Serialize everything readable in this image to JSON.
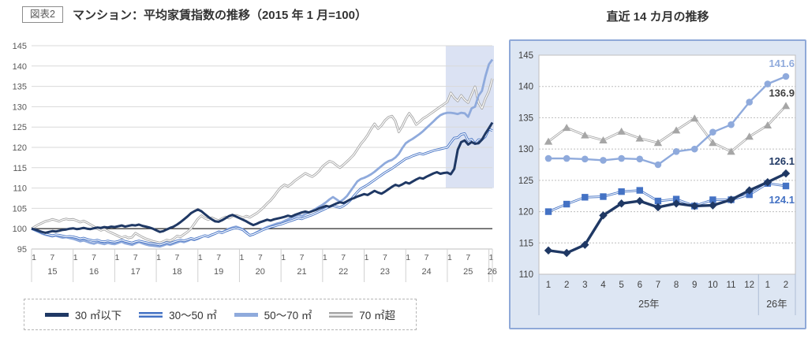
{
  "header": {
    "figure_label": "図表2",
    "title": "マンション：平均家賃指数の推移（2015 年 1 月=100）",
    "right_title": "直近 14 カ月の推移"
  },
  "colors": {
    "navy": "#1f3864",
    "blue": "#4472c4",
    "light_blue": "#8faadc",
    "gray": "#a6a6a6",
    "grid": "#d9d9d9",
    "baseline": "#3f3f3f",
    "axis_text": "#595959",
    "label_dark": "#3f3f3f",
    "highlight_band": "#dbe2f3",
    "panel_bg": "#dde6f3",
    "panel_border": "#8fa9d8"
  },
  "legend": {
    "items": [
      {
        "label": "30 ㎡以下",
        "style": "solid-navy",
        "color": "#1f3864"
      },
      {
        "label": "30～50 ㎡",
        "style": "double-blue",
        "color": "#4472c4"
      },
      {
        "label": "50～70 ㎡",
        "style": "solid-light",
        "color": "#8faadc"
      },
      {
        "label": "70 ㎡超",
        "style": "double-gray",
        "color": "#a6a6a6"
      }
    ]
  },
  "chart_data": [
    {
      "type": "line",
      "title": "マンション：平均家賃指数の推移（2015 年 1 月=100）",
      "x_months": {
        "start": "2015-01",
        "end": "2026-02",
        "interval": "monthly",
        "count": 134
      },
      "ylim": [
        95,
        145
      ],
      "yticks": [
        95,
        100,
        105,
        110,
        115,
        120,
        125,
        130,
        135,
        140,
        145
      ],
      "baseline_value": 100,
      "xtick_month_labels": [
        "1",
        "7"
      ],
      "year_labels": [
        "15",
        "16",
        "17",
        "18",
        "19",
        "20",
        "21",
        "22",
        "23",
        "24",
        "25",
        "26"
      ],
      "highlight": {
        "start_month": "2025-01",
        "start_index": 120,
        "bottom_value": 110
      },
      "grid": true,
      "series": [
        {
          "key": "over70",
          "name": "70 ㎡超",
          "color": "#a6a6a6",
          "style": "double",
          "values": [
            100,
            100.5,
            101,
            101.4,
            101.8,
            102,
            102.3,
            102.1,
            101.8,
            102.2,
            102.4,
            102.2,
            102.3,
            102,
            101.6,
            101.9,
            101.5,
            101,
            100.5,
            100,
            99.6,
            99.9,
            99.4,
            99,
            98.6,
            98.2,
            97.8,
            98.1,
            97.7,
            97.9,
            98.9,
            98.4,
            97.9,
            97.5,
            97.2,
            96.9,
            96.7,
            96.5,
            96.8,
            97.2,
            97,
            97.5,
            98.2,
            98,
            98.6,
            99.2,
            100,
            101.2,
            102.4,
            103.2,
            102.6,
            102.2,
            102.7,
            102.3,
            102,
            102.5,
            102.9,
            102.6,
            103.1,
            103.3,
            103,
            102.7,
            103.1,
            102.8,
            103.3,
            103.8,
            104.5,
            105.3,
            106.2,
            107,
            108,
            109.2,
            110.2,
            110.8,
            110.4,
            111,
            111.8,
            112.4,
            113,
            113.6,
            113.2,
            112.8,
            113.4,
            114.2,
            115.3,
            116,
            116.6,
            116.3,
            115.6,
            115,
            115.7,
            116.5,
            117.3,
            118.2,
            119.5,
            120.8,
            121.8,
            123,
            124.5,
            125.8,
            124.6,
            125.4,
            126.6,
            127.4,
            127.7,
            126.5,
            123.8,
            125.2,
            127,
            128.4,
            127.2,
            125.6,
            126.3,
            127.1,
            127.6,
            128.2,
            128.8,
            129.4,
            130,
            130.6,
            131.2,
            133.4,
            132.2,
            131.4,
            132.8,
            131.7,
            131,
            133,
            134.9,
            131,
            129.6,
            132,
            133.8,
            136.9
          ]
        },
        {
          "key": "s50to70",
          "name": "50～70 ㎡",
          "color": "#8faadc",
          "style": "solid",
          "values": [
            100,
            99.6,
            99.2,
            98.8,
            98.5,
            98.3,
            98.1,
            98.3,
            98,
            97.8,
            97.9,
            97.7,
            97.5,
            97.2,
            96.9,
            97.1,
            96.8,
            96.5,
            96.3,
            96.6,
            96.4,
            96.2,
            96.5,
            96.3,
            96.2,
            96.5,
            96.8,
            96.4,
            96.2,
            96,
            96.4,
            96.7,
            96.4,
            96.1,
            95.9,
            95.8,
            95.7,
            95.6,
            95.9,
            96.2,
            96,
            96.3,
            96.6,
            96.9,
            96.7,
            97,
            97.4,
            97.2,
            97.5,
            97.9,
            98.3,
            98,
            98.4,
            98.8,
            99.3,
            99.1,
            99.6,
            100,
            100.3,
            100.5,
            100.2,
            99.8,
            99.2,
            98.3,
            98.6,
            99.1,
            99.6,
            100,
            100.4,
            100.7,
            101,
            101.3,
            101.5,
            101.9,
            102.3,
            102.7,
            103,
            103.4,
            103.1,
            103.6,
            104,
            104.4,
            104.9,
            105.4,
            105.9,
            106.5,
            107.2,
            107.8,
            107.2,
            106.6,
            107.2,
            108,
            109.2,
            110.4,
            111.6,
            112.2,
            112.5,
            112.9,
            113.4,
            114,
            114.7,
            115.4,
            116.1,
            116.6,
            116.9,
            117.5,
            118.4,
            119.8,
            121,
            121.6,
            122.1,
            122.7,
            123.3,
            124,
            124.8,
            125.6,
            126.4,
            127.2,
            127.9,
            128.3,
            128.5,
            128.5,
            128.4,
            128.2,
            128.5,
            128.4,
            127.5,
            129.6,
            130,
            132.7,
            133.9,
            137.5,
            140.4,
            141.6
          ]
        },
        {
          "key": "s30to50",
          "name": "30～50 ㎡",
          "color": "#4472c4",
          "style": "double",
          "values": [
            100,
            99.7,
            99.4,
            99,
            98.7,
            98.5,
            98.3,
            98.5,
            98.4,
            98.2,
            98,
            98.1,
            98,
            97.8,
            97.5,
            97.7,
            97.4,
            97.2,
            97,
            97.2,
            96.9,
            96.8,
            97,
            96.8,
            96.7,
            96.9,
            97.2,
            96.9,
            96.7,
            96.5,
            96.8,
            97,
            96.8,
            96.6,
            96.4,
            96.3,
            96.2,
            96,
            96.3,
            96.6,
            96.4,
            96.7,
            97,
            97.2,
            97,
            97.3,
            97.6,
            97.4,
            97.7,
            98,
            98.3,
            98.1,
            98.5,
            98.8,
            99.2,
            99,
            99.4,
            99.7,
            100,
            100.2,
            100,
            99.7,
            99,
            98.4,
            98.6,
            99,
            99.4,
            99.8,
            100.1,
            100.4,
            100.6,
            100.9,
            101.1,
            101.4,
            101.7,
            102,
            102.3,
            102.6,
            102.4,
            102.8,
            103.1,
            103.4,
            103.8,
            104.2,
            104.6,
            105,
            105.4,
            105.7,
            105.4,
            105.2,
            105.6,
            106.2,
            107,
            108,
            109,
            109.8,
            110.3,
            110.8,
            111.4,
            112,
            112.6,
            113.2,
            113.8,
            114.3,
            114.8,
            115.4,
            116,
            116.6,
            117.2,
            117.5,
            117.9,
            118.2,
            118.5,
            118.3,
            118.6,
            118.9,
            119.2,
            119.4,
            119.6,
            119.8,
            120,
            121.2,
            122.3,
            122.4,
            123.2,
            123.4,
            121.7,
            122,
            120.9,
            121.9,
            121.9,
            122.7,
            124.5,
            124.1
          ]
        },
        {
          "key": "under30",
          "name": "30 ㎡以下",
          "color": "#1f3864",
          "style": "solid",
          "values": [
            100,
            99.8,
            99.5,
            99.2,
            99,
            99.2,
            99.4,
            99.3,
            99.5,
            99.7,
            99.8,
            100,
            100.1,
            99.9,
            100,
            100.2,
            100,
            99.9,
            100.1,
            100.3,
            100.2,
            100.4,
            100.3,
            100.5,
            100.4,
            100.6,
            100.8,
            100.5,
            100.7,
            100.9,
            100.8,
            101,
            100.7,
            100.5,
            100.3,
            100,
            99.6,
            99.2,
            99.4,
            99.8,
            100.2,
            100.5,
            101,
            101.6,
            102.3,
            103,
            103.8,
            104.3,
            104.7,
            104.3,
            103.6,
            102.9,
            102.3,
            101.8,
            101.7,
            102.1,
            102.6,
            103.1,
            103.4,
            103,
            102.6,
            102.2,
            101.8,
            101.3,
            100.9,
            101.2,
            101.6,
            101.9,
            102.2,
            102,
            102.3,
            102.5,
            102.7,
            102.9,
            103.2,
            103,
            103.4,
            103.7,
            104,
            104.2,
            104,
            104.3,
            104.6,
            105,
            105.3,
            105.6,
            105.4,
            105.8,
            106.2,
            106.5,
            106.3,
            106.7,
            107.2,
            107.5,
            107.9,
            108.2,
            108.5,
            108.3,
            108.8,
            109.3,
            108.9,
            108.6,
            109.1,
            109.7,
            110.3,
            110.8,
            110.5,
            110.9,
            111.4,
            111.1,
            111.6,
            112.1,
            112.5,
            112.3,
            112.8,
            113.2,
            113.6,
            113.9,
            113.5,
            113.7,
            113.8,
            113.4,
            114.7,
            119.4,
            121.3,
            121.7,
            120.7,
            121.3,
            120.9,
            121,
            121.9,
            123.4,
            124.7,
            126.1
          ]
        }
      ]
    },
    {
      "type": "line",
      "title": "直近 14 カ月の推移",
      "categories": [
        "1",
        "2",
        "3",
        "4",
        "5",
        "6",
        "7",
        "8",
        "9",
        "10",
        "11",
        "12",
        "1",
        "2"
      ],
      "year_groups": [
        {
          "label": "25年",
          "span": 12
        },
        {
          "label": "26年",
          "span": 2
        }
      ],
      "ylim": [
        110,
        145
      ],
      "yticks": [
        110,
        115,
        120,
        125,
        130,
        135,
        140,
        145
      ],
      "grid": true,
      "series": [
        {
          "key": "over70",
          "name": "70 ㎡超",
          "color": "#a6a6a6",
          "style": "double",
          "marker": "triangle",
          "values": [
            131.2,
            133.4,
            132.2,
            131.4,
            132.8,
            131.7,
            131,
            133,
            134.9,
            131,
            129.6,
            132,
            133.8,
            136.9
          ],
          "end_label": {
            "text": "136.9",
            "color": "#3f3f3f",
            "dy": -12
          }
        },
        {
          "key": "s50to70",
          "name": "50～70 ㎡",
          "color": "#8faadc",
          "style": "solid",
          "marker": "circle",
          "values": [
            128.5,
            128.5,
            128.4,
            128.2,
            128.5,
            128.4,
            127.5,
            129.6,
            130,
            132.7,
            133.9,
            137.5,
            140.4,
            141.6
          ],
          "end_label": {
            "text": "141.6",
            "color": "#8faadc",
            "dy": -12
          }
        },
        {
          "key": "s30to50",
          "name": "30～50 ㎡",
          "color": "#4472c4",
          "style": "double",
          "marker": "square",
          "values": [
            120,
            121.2,
            122.3,
            122.4,
            123.2,
            123.4,
            121.7,
            122,
            120.9,
            121.9,
            121.9,
            122.7,
            124.5,
            124.1
          ],
          "end_label": {
            "text": "124.1",
            "color": "#4472c4",
            "dy": 22
          }
        },
        {
          "key": "under30",
          "name": "30 ㎡以下",
          "color": "#1f3864",
          "style": "solid",
          "marker": "diamond",
          "values": [
            113.8,
            113.4,
            114.7,
            119.4,
            121.3,
            121.7,
            120.7,
            121.3,
            120.9,
            121,
            121.9,
            123.4,
            124.7,
            126.1
          ],
          "end_label": {
            "text": "126.1",
            "color": "#1f3864",
            "dy": -11
          }
        }
      ]
    }
  ]
}
